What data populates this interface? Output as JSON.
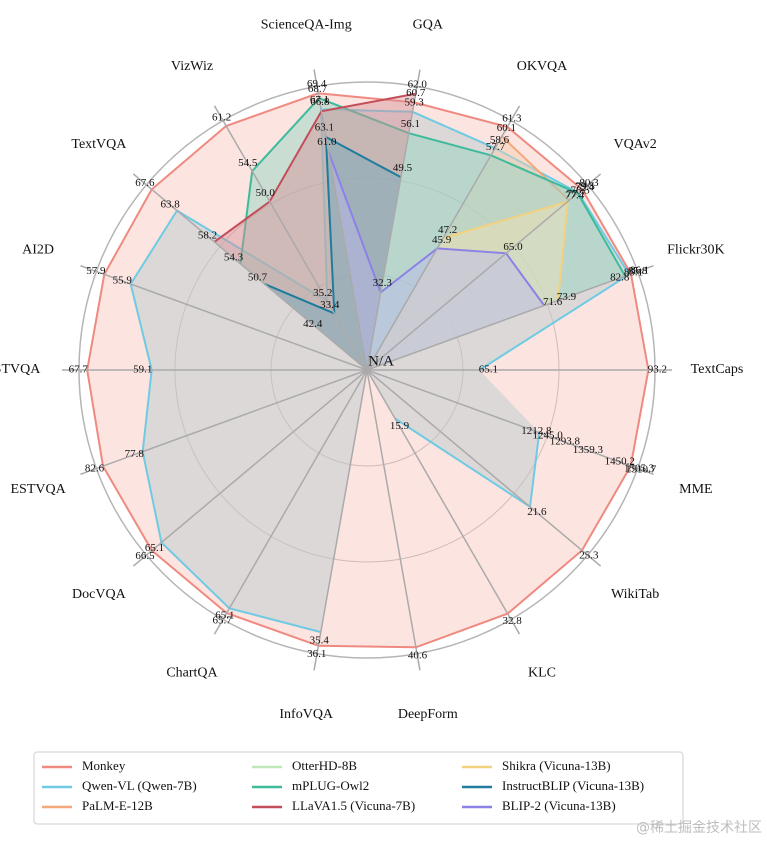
{
  "chart_data": {
    "type": "radar",
    "center_label": "N/A",
    "axes": [
      {
        "name": "TextCaps",
        "lim": [
          46.4,
          94.3
        ]
      },
      {
        "name": "Flickr30K",
        "lim": [
          42,
          87.2
        ]
      },
      {
        "name": "VQAv2",
        "lim": [
          37,
          81.4
        ]
      },
      {
        "name": "OKVQA",
        "lim": [
          30.5,
          62.1
        ]
      },
      {
        "name": "GQA",
        "lim": [
          20.7,
          63.1
        ]
      },
      {
        "name": "ScienceQA-Img",
        "lim": [
          29.5,
          70.4
        ]
      },
      {
        "name": "VizWiz",
        "lim": [
          25,
          62
        ]
      },
      {
        "name": "TextVQA",
        "lim": [
          35.3,
          68.4
        ]
      },
      {
        "name": "AI2D",
        "lim": [
          38,
          58.5
        ]
      },
      {
        "name": "STVQA",
        "lim": [
          30.4,
          68.8
        ]
      },
      {
        "name": "ESTVQA",
        "lim": [
          50.7,
          83.4
        ]
      },
      {
        "name": "DocVQA",
        "lim": [
          35,
          67.3
        ]
      },
      {
        "name": "ChartQA",
        "lim": [
          35,
          66.5
        ]
      },
      {
        "name": "InfoVQA",
        "lim": [
          22,
          36.5
        ]
      },
      {
        "name": "DeepForm",
        "lim": [
          1.35,
          41.5
        ]
      },
      {
        "name": "KLC",
        "lim": [
          11.7,
          33.3
        ]
      },
      {
        "name": "WikiTab",
        "lim": [
          10,
          25.7
        ]
      },
      {
        "name": "MME",
        "lim": [
          755,
          1525
        ]
      }
    ],
    "series": [
      {
        "name": "Monkey",
        "color": "#ef8a80",
        "fill": "#f9c4bd",
        "values": [
          93.2,
          86.1,
          80.3,
          61.3,
          60.7,
          69.4,
          61.2,
          67.6,
          57.9,
          67.7,
          82.6,
          66.5,
          65.7,
          36.1,
          40.6,
          32.8,
          25.3,
          1505.3
        ],
        "value_labels": [
          "93.2",
          "86.1",
          "80.3",
          "61.3",
          "60.7",
          "69.4",
          "61.2",
          "67.6",
          "57.9",
          "67.7",
          "82.6",
          "66.5",
          "65.7",
          "36.1",
          "40.6",
          "32.8",
          "25.3",
          "1505.3"
        ]
      },
      {
        "name": "Qwen-VL (Qwen-7B)",
        "color": "#6ecbe3",
        "fill": "#b9c9cf",
        "values": [
          65.1,
          85.8,
          79.5,
          58.6,
          59.3,
          67.1,
          35.2,
          63.8,
          55.9,
          59.1,
          77.8,
          65.1,
          65.1,
          35.4,
          null,
          15.9,
          21.6,
          1245.0
        ],
        "value_labels": [
          "65.1",
          "85.8",
          "79.5",
          "58.6",
          "59.3",
          "67.1",
          "35.2",
          "63.8",
          "55.9",
          "59.1",
          "77.8",
          "65.1",
          "65.1",
          "35.4",
          null,
          "15.9",
          "21.6",
          "1245.0"
        ]
      },
      {
        "name": "PaLM-E-12B",
        "color": "#f3a77a",
        "fill": "#f6cfae",
        "values": [
          null,
          null,
          77.7,
          60.1,
          null,
          null,
          null,
          null,
          null,
          null,
          null,
          null,
          null,
          null,
          null,
          null,
          null,
          null
        ],
        "value_labels": [
          null,
          null,
          "77.7",
          "60.1",
          null,
          null,
          null,
          null,
          null,
          null,
          null,
          null,
          null,
          null,
          null,
          null,
          null,
          null
        ]
      },
      {
        "name": "OtterHD-8B",
        "color": "#bfe8b8",
        "fill": "#dcf2d8",
        "values": [
          null,
          null,
          null,
          null,
          null,
          null,
          null,
          null,
          null,
          null,
          null,
          null,
          null,
          null,
          null,
          null,
          null,
          1359.3
        ],
        "value_labels": [
          null,
          null,
          null,
          null,
          null,
          null,
          null,
          null,
          null,
          null,
          null,
          null,
          null,
          null,
          null,
          null,
          null,
          "1359.3"
        ]
      },
      {
        "name": "mPLUG-Owl2",
        "color": "#3dbb9b",
        "fill": "#8fd5c2",
        "values": [
          null,
          85.1,
          79.4,
          57.7,
          56.1,
          68.7,
          54.5,
          54.3,
          null,
          null,
          null,
          null,
          null,
          null,
          null,
          null,
          null,
          1450.2
        ],
        "value_labels": [
          null,
          "85.1",
          "79.4",
          "57.7",
          "56.1",
          "68.7",
          "54.5",
          "54.3",
          null,
          null,
          null,
          null,
          null,
          null,
          null,
          null,
          null,
          "1450.2"
        ]
      },
      {
        "name": "LLaVA1.5 (Vicuna-7B)",
        "color": "#c24e5a",
        "fill": "#d89097",
        "values": [
          null,
          null,
          78.5,
          null,
          62.0,
          66.8,
          50.0,
          58.2,
          null,
          null,
          null,
          null,
          null,
          null,
          null,
          null,
          null,
          1510.7
        ],
        "value_labels": [
          null,
          null,
          "78.5",
          null,
          "62.0",
          "66.8",
          "50.0",
          "58.2",
          null,
          null,
          null,
          null,
          null,
          null,
          null,
          null,
          null,
          "1510.7"
        ]
      },
      {
        "name": "Shikra (Vicuna-13B)",
        "color": "#f2d27e",
        "fill": "#f4e4b6",
        "values": [
          null,
          73.9,
          77.4,
          47.2,
          null,
          null,
          null,
          null,
          null,
          null,
          null,
          null,
          null,
          null,
          null,
          null,
          null,
          null
        ],
        "value_labels": [
          null,
          "73.9",
          "77.4",
          "47.2",
          null,
          null,
          null,
          null,
          null,
          null,
          null,
          null,
          null,
          null,
          null,
          null,
          null,
          null
        ]
      },
      {
        "name": "InstructBLIP (Vicuna-13B)",
        "color": "#1f7c9c",
        "fill": "#6fa9bd",
        "values": [
          null,
          82.8,
          null,
          null,
          49.5,
          63.1,
          33.4,
          50.7,
          null,
          null,
          null,
          null,
          null,
          null,
          null,
          null,
          null,
          1212.8
        ],
        "value_labels": [
          null,
          "82.8",
          null,
          null,
          "49.5",
          "63.1",
          "33.4",
          "50.7",
          null,
          null,
          null,
          null,
          null,
          null,
          null,
          null,
          null,
          "1212.8"
        ]
      },
      {
        "name": "BLIP-2 (Vicuna-13B)",
        "color": "#8c82e6",
        "fill": "#bdb7f0",
        "values": [
          null,
          71.6,
          65.0,
          45.9,
          32.3,
          61.0,
          null,
          42.4,
          null,
          null,
          null,
          null,
          null,
          null,
          null,
          null,
          null,
          1293.8
        ],
        "value_labels": [
          null,
          "71.6",
          "65.0",
          "45.9",
          "32.3",
          "61.0",
          null,
          "42.4",
          null,
          null,
          null,
          null,
          null,
          null,
          null,
          null,
          null,
          "1293.8"
        ]
      }
    ],
    "legend_columns": 3
  },
  "watermark": "@稀土掘金技术社区"
}
